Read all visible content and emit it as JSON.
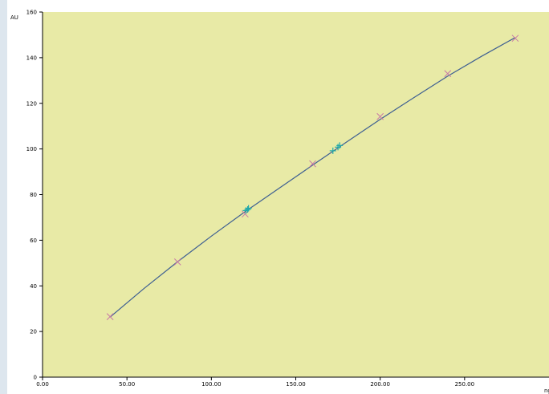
{
  "chart_data": {
    "type": "scatter",
    "title": "",
    "xlabel": "ng",
    "ylabel": "AU",
    "xlim": [
      0,
      300
    ],
    "ylim": [
      0,
      160
    ],
    "x_ticks": [
      "0.00",
      "50.00",
      "100.00",
      "150.00",
      "200.00",
      "250.00"
    ],
    "y_ticks": [
      "0",
      "20",
      "40",
      "60",
      "80",
      "100",
      "120",
      "140",
      "160"
    ],
    "grid": false,
    "legend": "none",
    "colors": {
      "plot_background": "#e8eaa6",
      "fit_line": "#3e5f92",
      "standards": "#c879a6",
      "samples": "#21a9a9"
    },
    "series": [
      {
        "marker": "x",
        "x": [
          40,
          80,
          120,
          160,
          200,
          240,
          280
        ],
        "y": [
          26.5,
          50.5,
          71.5,
          93.5,
          114.2,
          133,
          148.5
        ]
      },
      {
        "marker": "+",
        "x": [
          120.5,
          121.5,
          122,
          172,
          175,
          176
        ],
        "y": [
          73,
          73.5,
          74,
          99.2,
          100.8,
          101.5
        ]
      }
    ],
    "fit_curve": {
      "x": [
        40,
        60,
        80,
        100,
        120,
        140,
        160,
        180,
        200,
        220,
        240,
        260,
        280
      ],
      "y": [
        26.3,
        38.8,
        50.6,
        61.8,
        72.5,
        82.7,
        92.9,
        103.0,
        113.0,
        122.5,
        131.9,
        140.6,
        148.8
      ]
    }
  }
}
